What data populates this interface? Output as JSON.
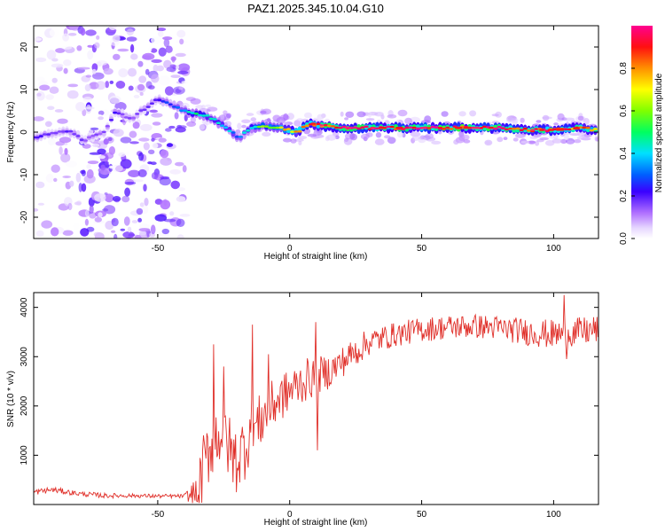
{
  "title": "PAZ1.2025.345.10.04.G10",
  "colors": {
    "snr_line": "#e0302a",
    "frame": "#000000",
    "ridge_hot": "#ff2a2a",
    "ridge_mid": "#28e8a0",
    "ridge_low": "#2020ff",
    "scatter": "#9a40ff",
    "scatter_light": "#d9c2ff"
  },
  "chart_data": [
    {
      "type": "heatmap",
      "name": "spectrogram",
      "xlabel": "Height of straight line (km)",
      "ylabel": "Frequency (Hz)",
      "xlim": [
        -97,
        117
      ],
      "ylim": [
        -25,
        25
      ],
      "xticks": [
        -50,
        0,
        50,
        100
      ],
      "yticks": [
        -20,
        -10,
        0,
        10,
        20
      ],
      "colorbar": {
        "label": "Normalized spectral amplitude",
        "range": [
          0,
          1
        ],
        "ticks": [
          0.0,
          0.2,
          0.4,
          0.6,
          0.8
        ],
        "colormap": "rainbow (white-violet-blue-cyan-green-yellow-red-magenta)"
      },
      "ridge": {
        "description": "Dominant frequency track vs height",
        "x": [
          -95,
          -88,
          -82,
          -78,
          -70,
          -66,
          -60,
          -50,
          -40,
          -37,
          -33,
          -30,
          -26,
          -22,
          -19,
          -15,
          -10,
          -5,
          0,
          3,
          5,
          8,
          12,
          20,
          30,
          40,
          50,
          60,
          70,
          80,
          90,
          100,
          110,
          117
        ],
        "freq": [
          -1,
          0,
          0,
          -2,
          0,
          5,
          3,
          8,
          5,
          4.5,
          4,
          3.5,
          2,
          0,
          -1.5,
          1,
          1.5,
          1,
          0.5,
          0,
          1,
          2,
          1.5,
          1,
          1,
          1,
          1,
          1,
          1,
          1,
          0.5,
          0.5,
          1,
          0.5
        ],
        "amplitude": [
          0.2,
          0.15,
          0.2,
          0.15,
          0.15,
          0.2,
          0.15,
          0.2,
          0.35,
          0.45,
          0.45,
          0.4,
          0.4,
          0.35,
          0.3,
          0.45,
          0.55,
          0.65,
          0.75,
          0.8,
          0.85,
          0.85,
          0.9,
          0.95,
          0.95,
          0.95,
          1.0,
          0.95,
          0.95,
          0.95,
          0.9,
          0.9,
          0.85,
          0.8
        ]
      },
      "noise_region": {
        "x_range": [
          -97,
          -39
        ],
        "freq_range": [
          -25,
          25
        ],
        "amplitude_range": [
          0.0,
          0.2
        ]
      }
    },
    {
      "type": "line",
      "name": "snr",
      "xlabel": "Height of straight line (km)",
      "ylabel": "SNR (10 * v/v)",
      "xlim": [
        -97,
        117
      ],
      "ylim": [
        0,
        4300
      ],
      "xticks": [
        -50,
        0,
        50,
        100
      ],
      "yticks": [
        1000,
        2000,
        3000,
        4000
      ],
      "trend": {
        "x": [
          -97,
          -90,
          -80,
          -70,
          -60,
          -50,
          -40,
          -35,
          -33,
          -30,
          -28,
          -25,
          -22,
          -20,
          -17,
          -15,
          -12,
          -10,
          -5,
          0,
          5,
          10,
          15,
          20,
          25,
          30,
          40,
          50,
          60,
          70,
          80,
          90,
          100,
          110,
          117
        ],
        "y": [
          250,
          300,
          220,
          180,
          180,
          170,
          170,
          200,
          700,
          1200,
          1400,
          1500,
          1000,
          900,
          1200,
          1500,
          1600,
          1800,
          2100,
          2300,
          2500,
          2600,
          2700,
          2900,
          3100,
          3300,
          3450,
          3550,
          3600,
          3620,
          3580,
          3500,
          3450,
          3500,
          3550
        ]
      },
      "noise_amplitude": [
        60,
        60,
        50,
        50,
        40,
        40,
        40,
        400,
        700,
        700,
        700,
        700,
        700,
        700,
        700,
        700,
        600,
        550,
        500,
        450,
        450,
        400,
        350,
        320,
        300,
        280,
        250,
        250,
        250,
        250,
        250,
        280,
        300,
        300,
        300
      ],
      "spikes": [
        {
          "x": -29,
          "y": 3250
        },
        {
          "x": -25,
          "y": 2800
        },
        {
          "x": -14,
          "y": 3650
        },
        {
          "x": -8,
          "y": 3050
        },
        {
          "x": 10,
          "y": 3700
        },
        {
          "x": 10.5,
          "y": 1100
        },
        {
          "x": 104,
          "y": 4250
        },
        {
          "x": 105,
          "y": 2950
        }
      ]
    }
  ]
}
